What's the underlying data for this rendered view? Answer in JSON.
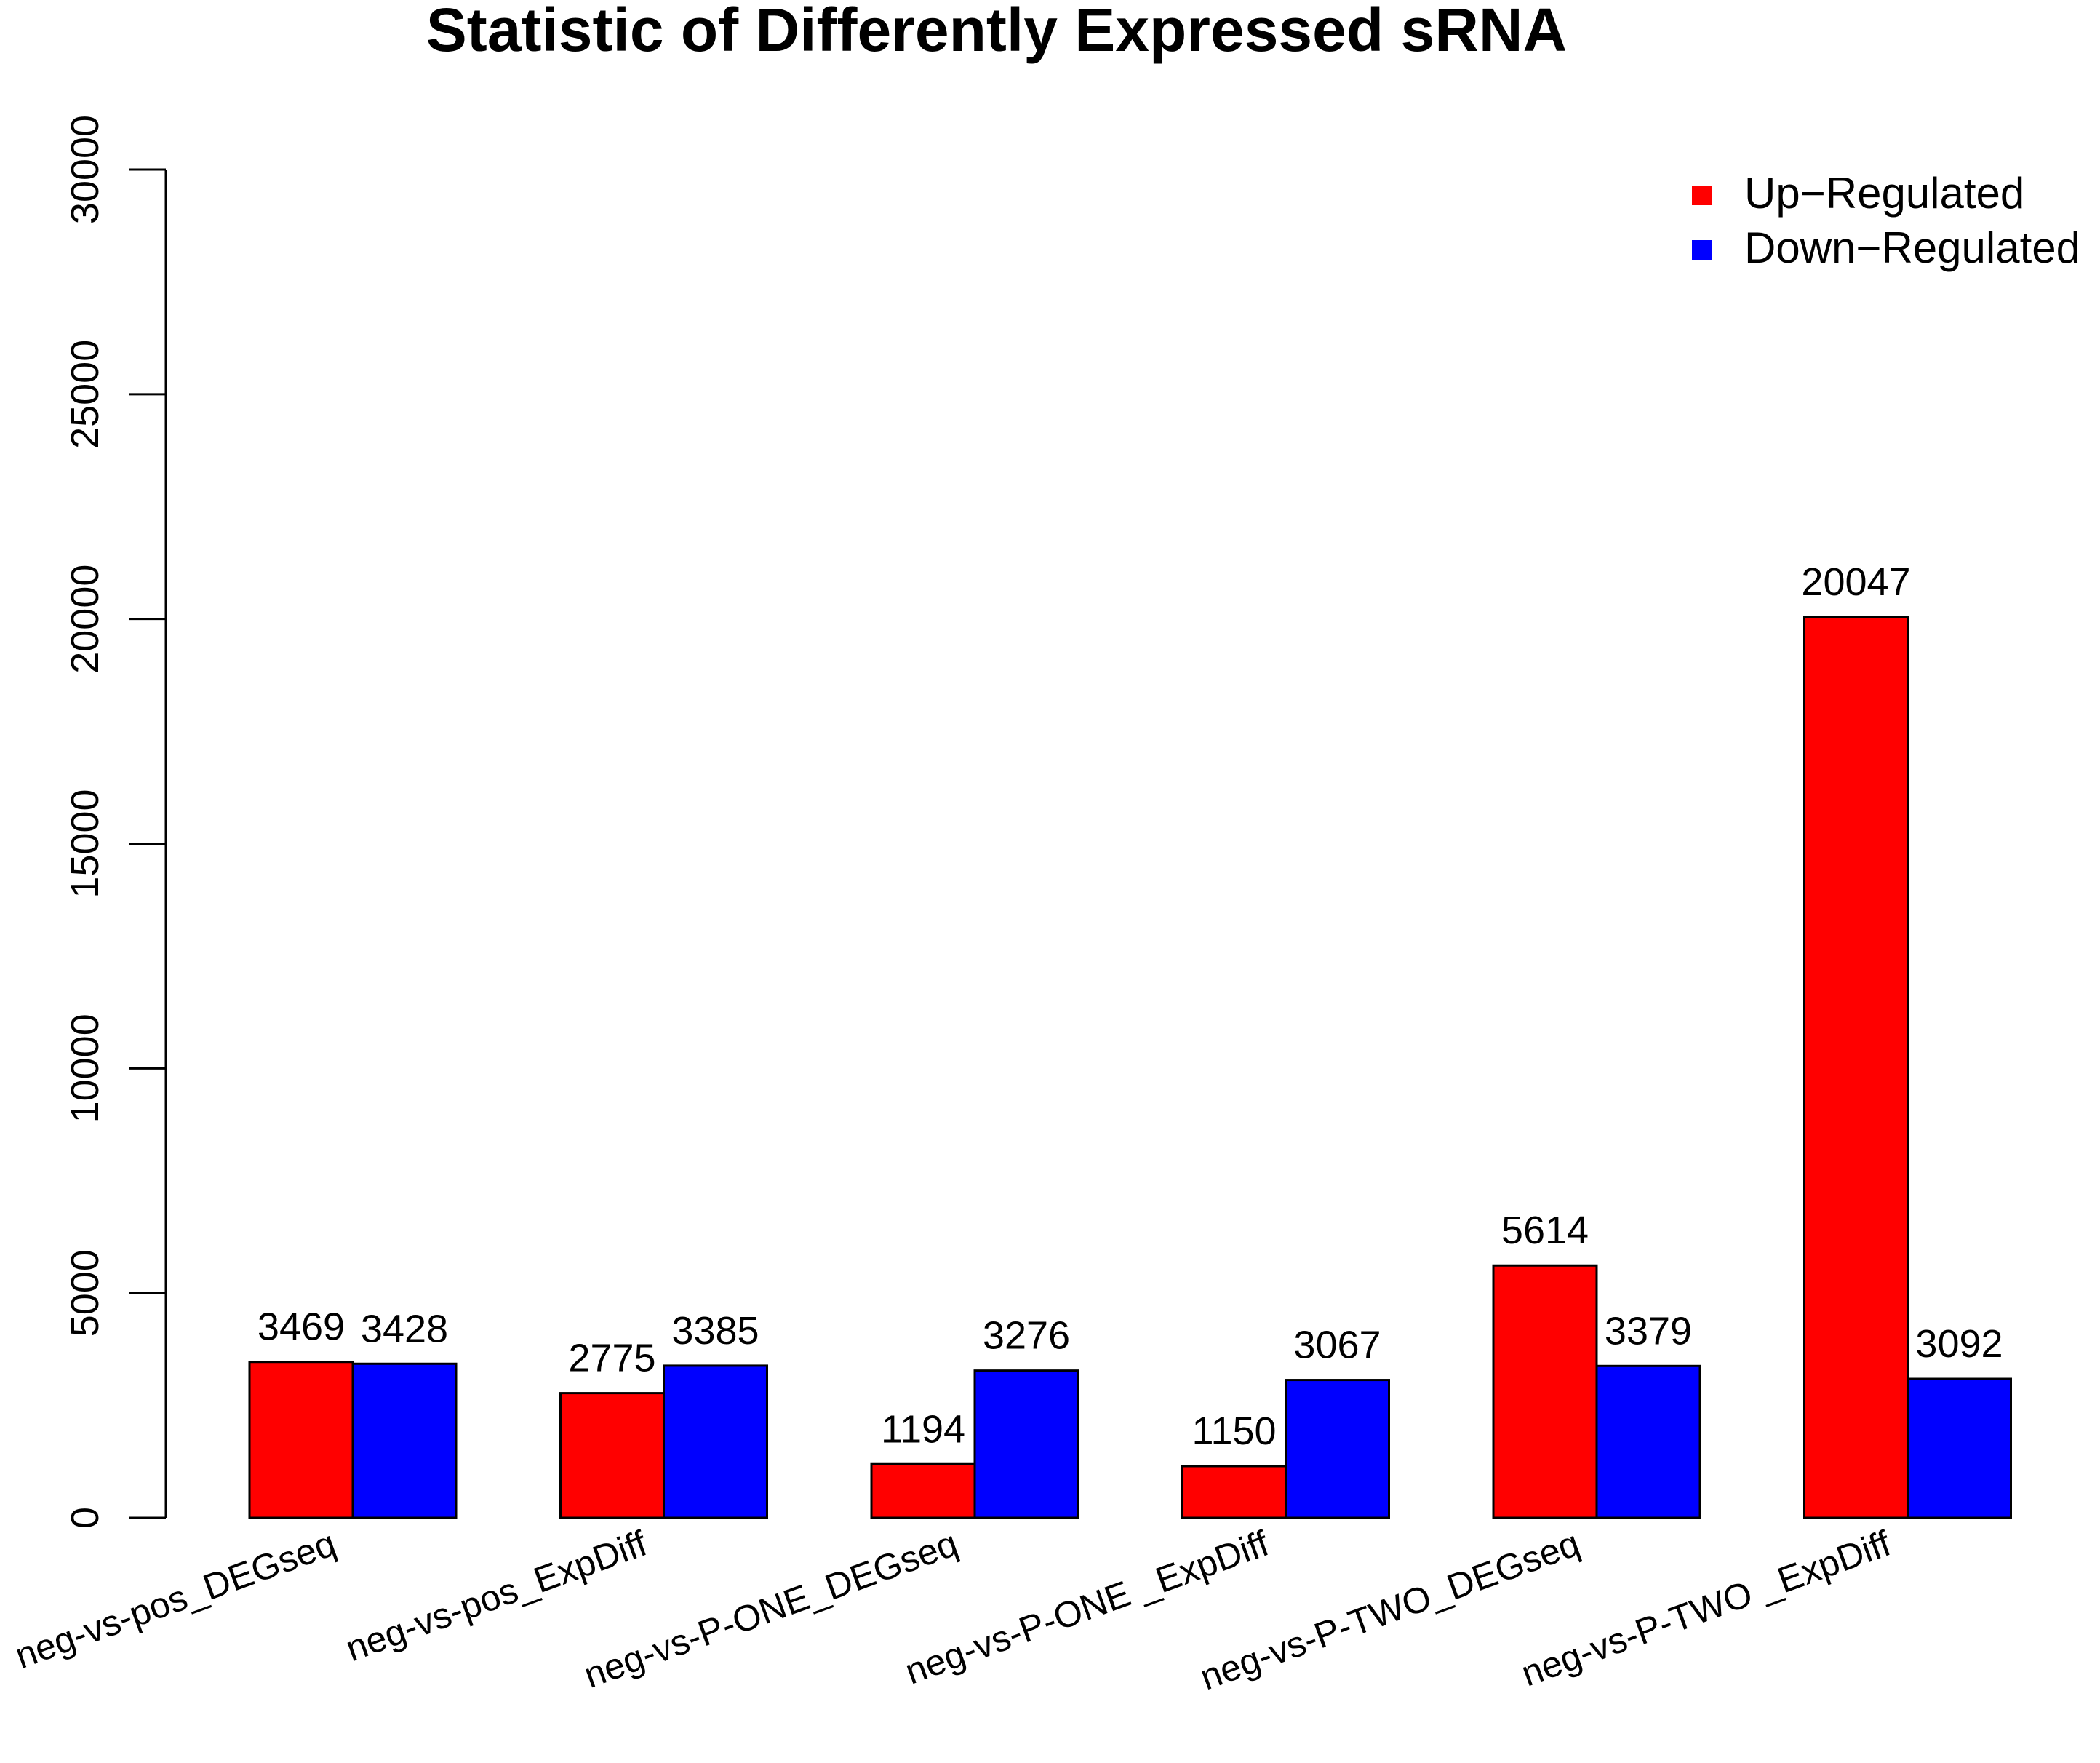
{
  "chart_data": {
    "type": "bar",
    "title": "Statistic of Differently Expressed sRNA",
    "xlabel": "",
    "ylabel": "",
    "ylim": [
      0,
      30000
    ],
    "yticks": [
      0,
      5000,
      10000,
      15000,
      20000,
      25000,
      30000
    ],
    "categories": [
      "neg-vs-pos_DEGseq",
      "neg-vs-pos_ExpDiff",
      "neg-vs-P-ONE_DEGseq",
      "neg-vs-P-ONE _ExpDiff",
      "neg-vs-P-TWO_DEGseq",
      "neg-vs-P-TWO _ExpDiff"
    ],
    "series": [
      {
        "name": "Up−Regulated",
        "color": "#ff0000",
        "values": [
          3469,
          2775,
          1194,
          1150,
          5614,
          20047
        ]
      },
      {
        "name": "Down−Regulated",
        "color": "#0000ff",
        "values": [
          3428,
          3385,
          3276,
          3067,
          3379,
          3092
        ]
      }
    ],
    "legend_position": "top-right",
    "grid": false
  }
}
